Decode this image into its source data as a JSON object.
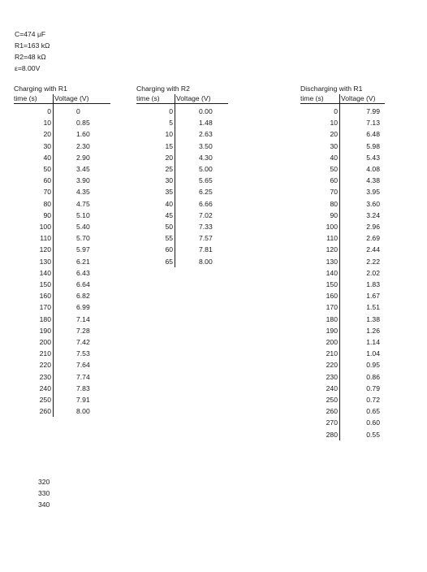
{
  "params": [
    "C=474 μF",
    "R1=163 kΩ",
    "R2=48 kΩ",
    "ε=8.00V"
  ],
  "tables": [
    {
      "title": "Charging  with R1",
      "time_header": "time (s)",
      "voltage_header": "Voltage (V)",
      "rows": [
        [
          "0",
          "0"
        ],
        [
          "10",
          "0.85"
        ],
        [
          "20",
          "1.60"
        ],
        [
          "30",
          "2.30"
        ],
        [
          "40",
          "2.90"
        ],
        [
          "50",
          "3.45"
        ],
        [
          "60",
          "3.90"
        ],
        [
          "70",
          "4.35"
        ],
        [
          "80",
          "4.75"
        ],
        [
          "90",
          "5.10"
        ],
        [
          "100",
          "5.40"
        ],
        [
          "110",
          "5.70"
        ],
        [
          "120",
          "5.97"
        ],
        [
          "130",
          "6.21"
        ],
        [
          "140",
          "6.43"
        ],
        [
          "150",
          "6.64"
        ],
        [
          "160",
          "6.82"
        ],
        [
          "170",
          "6.99"
        ],
        [
          "180",
          "7.14"
        ],
        [
          "190",
          "7.28"
        ],
        [
          "200",
          "7.42"
        ],
        [
          "210",
          "7.53"
        ],
        [
          "220",
          "7.64"
        ],
        [
          "230",
          "7.74"
        ],
        [
          "240",
          "7.83"
        ],
        [
          "250",
          "7.91"
        ],
        [
          "260",
          "8.00"
        ]
      ],
      "extra_times": [
        "320",
        "330",
        "340"
      ]
    },
    {
      "title": "Charging  with R2",
      "time_header": "time (s)",
      "voltage_header": "Voltage (V)",
      "rows": [
        [
          "0",
          "0.00"
        ],
        [
          "5",
          "1.48"
        ],
        [
          "10",
          "2.63"
        ],
        [
          "15",
          "3.50"
        ],
        [
          "20",
          "4.30"
        ],
        [
          "25",
          "5.00"
        ],
        [
          "30",
          "5.65"
        ],
        [
          "35",
          "6.25"
        ],
        [
          "40",
          "6.66"
        ],
        [
          "45",
          "7.02"
        ],
        [
          "50",
          "7.33"
        ],
        [
          "55",
          "7.57"
        ],
        [
          "60",
          "7.81"
        ],
        [
          "65",
          "8.00"
        ]
      ]
    },
    {
      "title": "Discharging  with R1",
      "time_header": "time (s)",
      "voltage_header": "Voltage (V)",
      "rows": [
        [
          "0",
          "7.99"
        ],
        [
          "10",
          "7.13"
        ],
        [
          "20",
          "6.48"
        ],
        [
          "30",
          "5.98"
        ],
        [
          "40",
          "5.43"
        ],
        [
          "50",
          "4.08"
        ],
        [
          "60",
          "4.38"
        ],
        [
          "70",
          "3.95"
        ],
        [
          "80",
          "3.60"
        ],
        [
          "90",
          "3.24"
        ],
        [
          "100",
          "2.96"
        ],
        [
          "110",
          "2.69"
        ],
        [
          "120",
          "2.44"
        ],
        [
          "130",
          "2.22"
        ],
        [
          "140",
          "2.02"
        ],
        [
          "150",
          "1.83"
        ],
        [
          "160",
          "1.67"
        ],
        [
          "170",
          "1.51"
        ],
        [
          "180",
          "1.38"
        ],
        [
          "190",
          "1.26"
        ],
        [
          "200",
          "1.14"
        ],
        [
          "210",
          "1.04"
        ],
        [
          "220",
          "0.95"
        ],
        [
          "230",
          "0.86"
        ],
        [
          "240",
          "0.79"
        ],
        [
          "250",
          "0.72"
        ],
        [
          "260",
          "0.65"
        ],
        [
          "270",
          "0.60"
        ],
        [
          "280",
          "0.55"
        ]
      ]
    }
  ]
}
